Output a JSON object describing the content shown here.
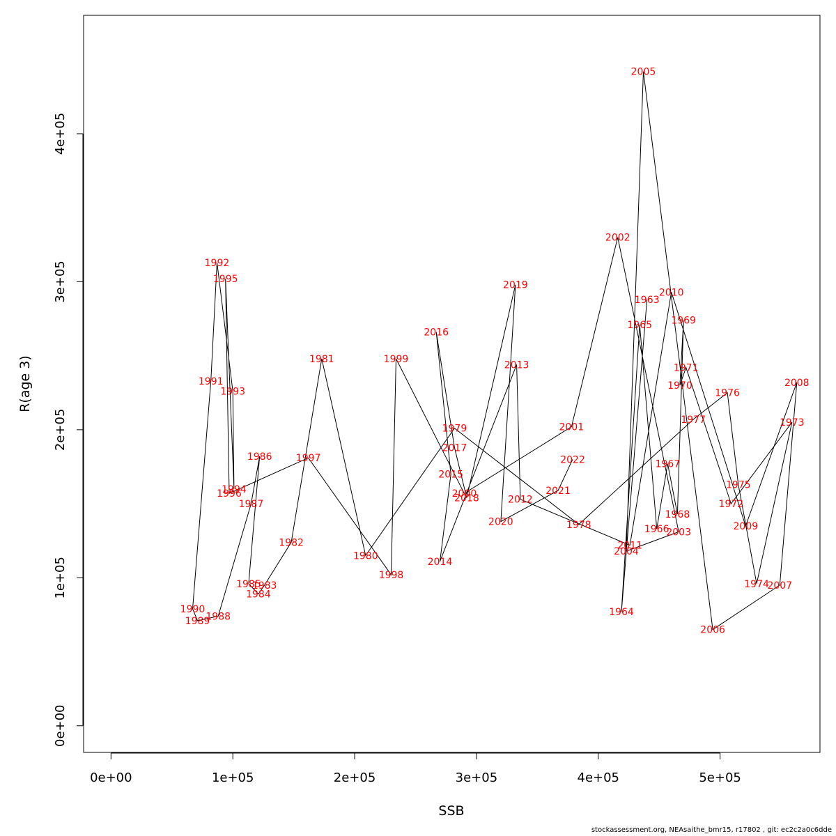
{
  "chart_data": {
    "type": "line",
    "xlabel": "SSB",
    "ylabel": "R(age 3)",
    "xlim": [
      -22500,
      582000
    ],
    "ylim": [
      -18000,
      480000
    ],
    "x_ticks": [
      0,
      100000,
      200000,
      300000,
      400000,
      500000
    ],
    "x_tick_labels": [
      "0e+00",
      "1e+05",
      "2e+05",
      "3e+05",
      "4e+05",
      "5e+05"
    ],
    "y_ticks": [
      0,
      100000,
      200000,
      300000,
      400000
    ],
    "y_tick_labels": [
      "0e+00",
      "1e+05",
      "2e+05",
      "3e+05",
      "4e+05"
    ],
    "line_color": "#000000",
    "label_color": "#ff0000",
    "points": [
      {
        "year": "1963",
        "ssb": 440000,
        "r": 288000
      },
      {
        "year": "1964",
        "ssb": 419000,
        "r": 77000
      },
      {
        "year": "1965",
        "ssb": 434000,
        "r": 271000
      },
      {
        "year": "1966",
        "ssb": 448000,
        "r": 133000
      },
      {
        "year": "1967",
        "ssb": 457000,
        "r": 177000
      },
      {
        "year": "1968",
        "ssb": 465000,
        "r": 143000
      },
      {
        "year": "1969",
        "ssb": 470000,
        "r": 274000
      },
      {
        "year": "1970",
        "ssb": 467000,
        "r": 230000
      },
      {
        "year": "1971",
        "ssb": 472000,
        "r": 242000
      },
      {
        "year": "1972",
        "ssb": 509000,
        "r": 150000
      },
      {
        "year": "1973",
        "ssb": 559000,
        "r": 205000
      },
      {
        "year": "1974",
        "ssb": 530000,
        "r": 96000
      },
      {
        "year": "1975",
        "ssb": 515000,
        "r": 163000
      },
      {
        "year": "1976",
        "ssb": 506000,
        "r": 225000
      },
      {
        "year": "1977",
        "ssb": 478000,
        "r": 207000
      },
      {
        "year": "1978",
        "ssb": 384000,
        "r": 136000
      },
      {
        "year": "1979",
        "ssb": 282000,
        "r": 201000
      },
      {
        "year": "1980",
        "ssb": 209000,
        "r": 115000
      },
      {
        "year": "1981",
        "ssb": 173000,
        "r": 248000
      },
      {
        "year": "1982",
        "ssb": 148000,
        "r": 124000
      },
      {
        "year": "1983",
        "ssb": 126000,
        "r": 95000
      },
      {
        "year": "1984",
        "ssb": 121000,
        "r": 89000
      },
      {
        "year": "1985",
        "ssb": 113000,
        "r": 96000
      },
      {
        "year": "1986",
        "ssb": 122000,
        "r": 182000
      },
      {
        "year": "1987",
        "ssb": 115000,
        "r": 150000
      },
      {
        "year": "1988",
        "ssb": 88000,
        "r": 74000
      },
      {
        "year": "1989",
        "ssb": 71000,
        "r": 71000
      },
      {
        "year": "1990",
        "ssb": 67000,
        "r": 79000
      },
      {
        "year": "1991",
        "ssb": 82000,
        "r": 233000
      },
      {
        "year": "1992",
        "ssb": 87000,
        "r": 313000
      },
      {
        "year": "1993",
        "ssb": 100000,
        "r": 226000
      },
      {
        "year": "1994",
        "ssb": 101000,
        "r": 160000
      },
      {
        "year": "1995",
        "ssb": 94000,
        "r": 302000
      },
      {
        "year": "1996",
        "ssb": 97000,
        "r": 157000
      },
      {
        "year": "1997",
        "ssb": 162000,
        "r": 181000
      },
      {
        "year": "1998",
        "ssb": 230000,
        "r": 102000
      },
      {
        "year": "1999",
        "ssb": 234000,
        "r": 248000
      },
      {
        "year": "2000",
        "ssb": 290000,
        "r": 157000
      },
      {
        "year": "2001",
        "ssb": 378000,
        "r": 202000
      },
      {
        "year": "2002",
        "ssb": 416000,
        "r": 330000
      },
      {
        "year": "2003",
        "ssb": 466000,
        "r": 131000
      },
      {
        "year": "2004",
        "ssb": 423000,
        "r": 118000
      },
      {
        "year": "2005",
        "ssb": 437000,
        "r": 442000
      },
      {
        "year": "2006",
        "ssb": 494000,
        "r": 65000
      },
      {
        "year": "2007",
        "ssb": 549000,
        "r": 95000
      },
      {
        "year": "2008",
        "ssb": 563000,
        "r": 232000
      },
      {
        "year": "2009",
        "ssb": 521000,
        "r": 135000
      },
      {
        "year": "2010",
        "ssb": 460000,
        "r": 293000
      },
      {
        "year": "2011",
        "ssb": 426000,
        "r": 122000
      },
      {
        "year": "2012",
        "ssb": 336000,
        "r": 153000
      },
      {
        "year": "2013",
        "ssb": 333000,
        "r": 244000
      },
      {
        "year": "2014",
        "ssb": 270000,
        "r": 111000
      },
      {
        "year": "2015",
        "ssb": 279000,
        "r": 170000
      },
      {
        "year": "2016",
        "ssb": 267000,
        "r": 266000
      },
      {
        "year": "2017",
        "ssb": 282000,
        "r": 188000
      },
      {
        "year": "2018",
        "ssb": 292000,
        "r": 154000
      },
      {
        "year": "2019",
        "ssb": 332000,
        "r": 298000
      },
      {
        "year": "2020",
        "ssb": 320000,
        "r": 138000
      },
      {
        "year": "2021",
        "ssb": 367000,
        "r": 159000
      },
      {
        "year": "2022",
        "ssb": 379000,
        "r": 180000
      }
    ]
  },
  "footer": {
    "text": "stockassessment.org, NEAsaithe_bmr15, r17802 , git: ec2c2a0c6dde"
  }
}
